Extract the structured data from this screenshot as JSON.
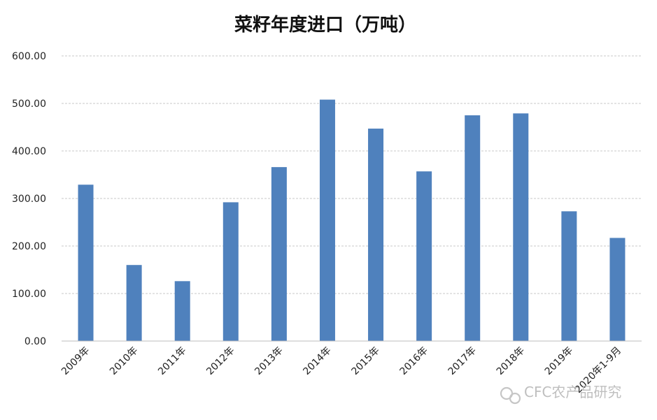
{
  "chart_data": {
    "type": "bar",
    "title": "菜籽年度进口（万吨）",
    "categories": [
      "2009年",
      "2010年",
      "2011年",
      "2012年",
      "2013年",
      "2014年",
      "2015年",
      "2016年",
      "2017年",
      "2018年",
      "2019年",
      "2020年1-9月"
    ],
    "values": [
      329,
      160,
      126,
      292,
      366,
      508,
      447,
      357,
      475,
      479,
      273,
      217
    ],
    "ylim": [
      0,
      600
    ],
    "yticks": [
      "0.00",
      "100.00",
      "200.00",
      "300.00",
      "400.00",
      "500.00",
      "600.00"
    ],
    "grid": true,
    "bar_color": "#4f81bd"
  },
  "watermark": {
    "text": "CFC农产品研究",
    "icon": "wechat-icon"
  }
}
